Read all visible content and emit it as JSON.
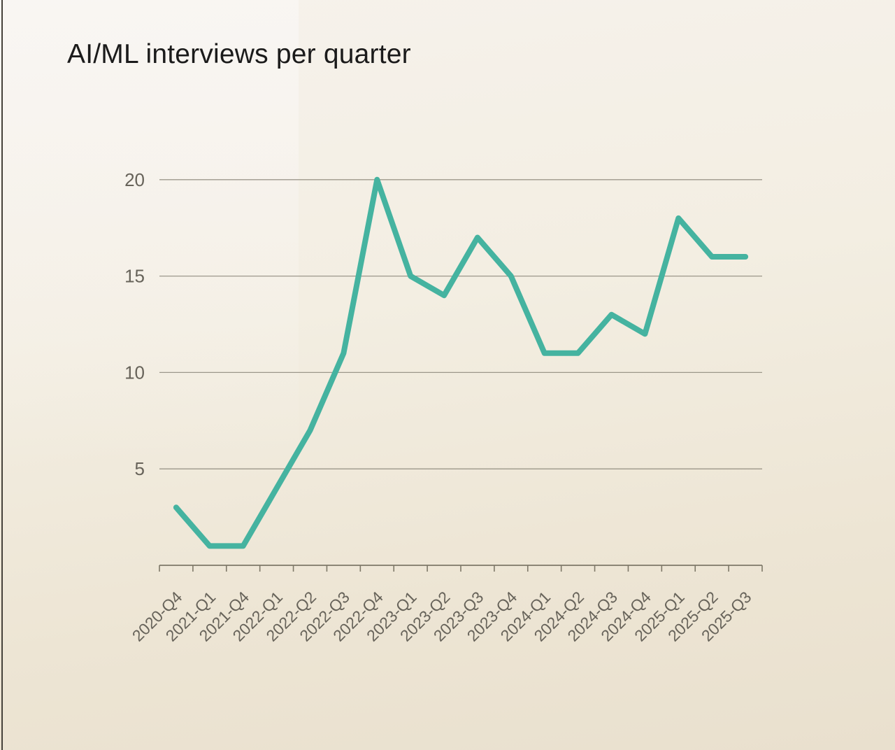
{
  "page": {
    "title": "AI/ML interviews per quarter"
  },
  "chart_data": {
    "type": "line",
    "title": "AI/ML interviews per quarter",
    "categories": [
      "2020-Q4",
      "2021-Q1",
      "2021-Q4",
      "2022-Q1",
      "2022-Q2",
      "2022-Q3",
      "2022-Q4",
      "2023-Q1",
      "2023-Q2",
      "2023-Q3",
      "2023-Q4",
      "2024-Q1",
      "2024-Q2",
      "2024-Q3",
      "2024-Q4",
      "2025-Q1",
      "2025-Q2",
      "2025-Q3"
    ],
    "values": [
      3,
      1,
      1,
      4,
      7,
      11,
      20,
      15,
      14,
      17,
      15,
      11,
      11,
      13,
      12,
      18,
      16,
      16
    ],
    "xlabel": "",
    "ylabel": "",
    "yticks": [
      5,
      10,
      15,
      20
    ],
    "ylim": [
      0,
      21
    ],
    "grid": "horizontal",
    "legend": "none",
    "colors": {
      "line": "#45b3a0",
      "grid": "#8e897c",
      "axis": "#7e7868",
      "tick_labels": "#67635a",
      "title": "#1b1b1b",
      "background": "#f2ecdf"
    }
  }
}
